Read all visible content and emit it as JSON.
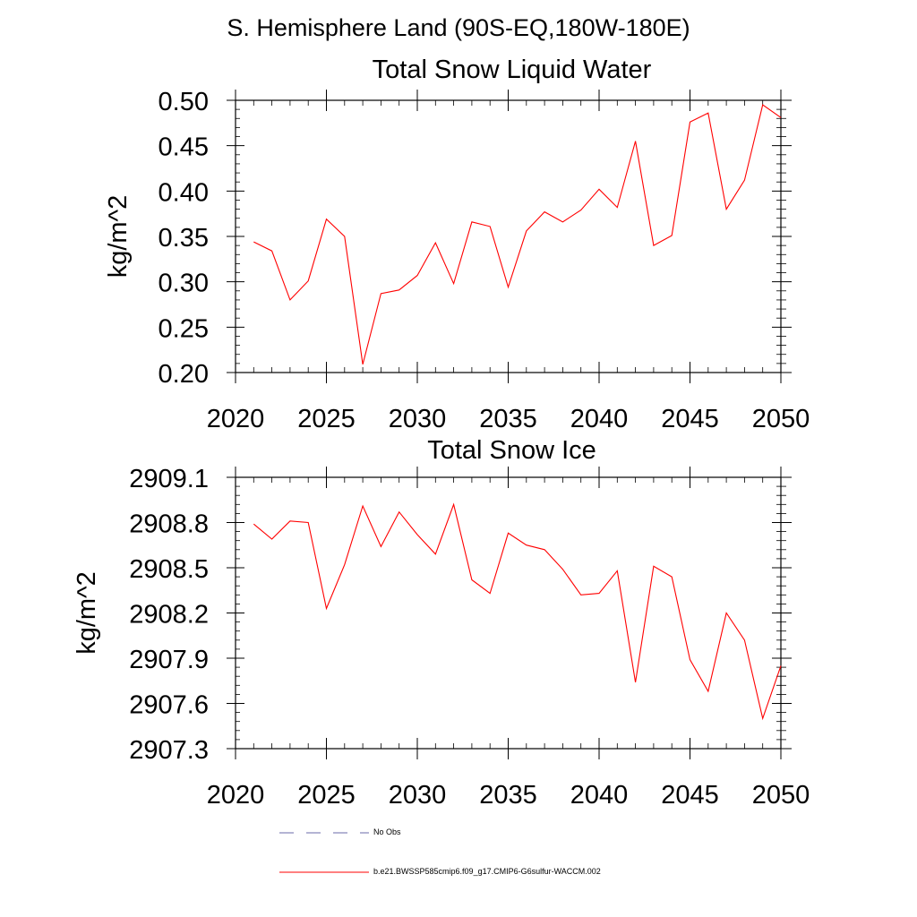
{
  "page_title": "S. Hemisphere Land (90S-EQ,180W-180E)",
  "colors": {
    "series": "#ff0000",
    "obs": "#6a6aa8",
    "axis": "#000000"
  },
  "chart_data": [
    {
      "type": "line",
      "title": "Total Snow Liquid Water",
      "ylabel": "kg/m^2",
      "xlim": [
        2020,
        2050
      ],
      "ylim": [
        0.2,
        0.5
      ],
      "xticks": [
        2020,
        2025,
        2030,
        2035,
        2040,
        2045,
        2050
      ],
      "xtick_labels": [
        "2020",
        "2025",
        "2030",
        "2035",
        "2040",
        "2045",
        "2050"
      ],
      "yticks": [
        0.2,
        0.25,
        0.3,
        0.35,
        0.4,
        0.45,
        0.5
      ],
      "ytick_labels": [
        "0.20",
        "0.25",
        "0.30",
        "0.35",
        "0.40",
        "0.45",
        "0.50"
      ],
      "x": [
        2021,
        2022,
        2023,
        2024,
        2025,
        2026,
        2027,
        2028,
        2029,
        2030,
        2031,
        2032,
        2033,
        2034,
        2035,
        2036,
        2037,
        2038,
        2039,
        2040,
        2041,
        2042,
        2043,
        2044,
        2045,
        2046,
        2047,
        2048,
        2049,
        2050
      ],
      "series": [
        {
          "values": [
            0.344,
            0.334,
            0.28,
            0.301,
            0.369,
            0.35,
            0.209,
            0.287,
            0.291,
            0.307,
            0.343,
            0.298,
            0.366,
            0.361,
            0.294,
            0.356,
            0.377,
            0.366,
            0.379,
            0.402,
            0.382,
            0.455,
            0.34,
            0.351,
            0.476,
            0.486,
            0.38,
            0.412,
            0.495,
            0.481
          ]
        }
      ]
    },
    {
      "type": "line",
      "title": "Total Snow Ice",
      "ylabel": "kg/m^2",
      "xlim": [
        2020,
        2050
      ],
      "ylim": [
        2907.3,
        2909.1
      ],
      "xticks": [
        2020,
        2025,
        2030,
        2035,
        2040,
        2045,
        2050
      ],
      "xtick_labels": [
        "2020",
        "2025",
        "2030",
        "2035",
        "2040",
        "2045",
        "2050"
      ],
      "yticks": [
        2907.3,
        2907.6,
        2907.9,
        2908.2,
        2908.5,
        2908.8,
        2909.1
      ],
      "ytick_labels": [
        "2907.3",
        "2907.6",
        "2907.9",
        "2908.2",
        "2908.5",
        "2908.8",
        "2909.1"
      ],
      "x": [
        2021,
        2022,
        2023,
        2024,
        2025,
        2026,
        2027,
        2028,
        2029,
        2030,
        2031,
        2032,
        2033,
        2034,
        2035,
        2036,
        2037,
        2038,
        2039,
        2040,
        2041,
        2042,
        2043,
        2044,
        2045,
        2046,
        2047,
        2048,
        2049,
        2050
      ],
      "series": [
        {
          "values": [
            2908.79,
            2908.69,
            2908.81,
            2908.8,
            2908.23,
            2908.52,
            2908.91,
            2908.64,
            2908.87,
            2908.72,
            2908.59,
            2908.92,
            2908.42,
            2908.33,
            2908.73,
            2908.65,
            2908.62,
            2908.49,
            2908.32,
            2908.33,
            2908.48,
            2907.74,
            2908.51,
            2908.44,
            2907.89,
            2907.68,
            2908.2,
            2908.02,
            2907.5,
            2907.85
          ]
        }
      ]
    }
  ],
  "legend": {
    "obs_label": "No Obs",
    "model_label": "b.e21.BWSSP585cmip6.f09_g17.CMIP6-G6sulfur-WACCM.002"
  }
}
